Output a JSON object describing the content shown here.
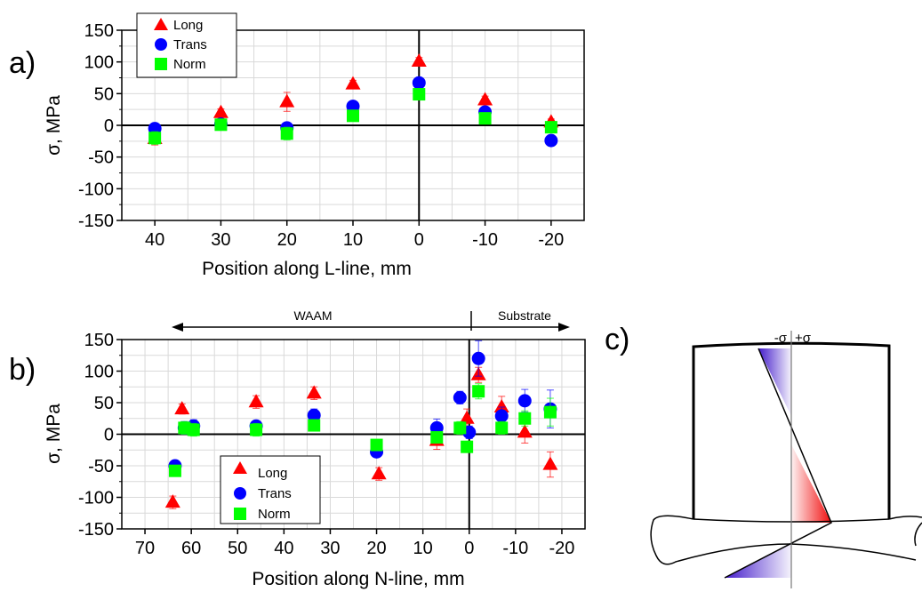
{
  "colors": {
    "long": "#ff0000",
    "trans": "#0000ff",
    "norm": "#00ff00"
  },
  "markers": {
    "long": "triangle",
    "trans": "circle",
    "norm": "square"
  },
  "panel_labels": {
    "a": "a)",
    "b": "b)",
    "c": "c)"
  },
  "panel_c": {
    "neg_label": "-σ",
    "pos_label": "+σ",
    "colors": {
      "negative": "#3a10c8",
      "positive": "#f00000"
    }
  },
  "chart_data": [
    {
      "type": "scatter",
      "panel": "a",
      "xlabel": "Position along L-line, mm",
      "ylabel": "σ, MPa",
      "xlim": [
        45,
        -25
      ],
      "ylim": [
        -150,
        150
      ],
      "x_reversed": true,
      "xticks": [
        40,
        30,
        20,
        10,
        0,
        -10,
        -20
      ],
      "yticks": [
        150,
        100,
        50,
        0,
        -50,
        -100,
        -150
      ],
      "grid": true,
      "zero_lines": true,
      "legend_position": "top-left",
      "series": [
        {
          "name": "Long",
          "key": "long",
          "x": [
            40,
            30,
            20,
            10,
            0,
            -10,
            -20
          ],
          "y": [
            -21,
            20,
            37,
            65,
            101,
            40,
            5
          ],
          "err": [
            10,
            6,
            15,
            6,
            6,
            6,
            5
          ]
        },
        {
          "name": "Trans",
          "key": "trans",
          "x": [
            40,
            30,
            20,
            10,
            0,
            -10,
            -20
          ],
          "y": [
            -5,
            2,
            -4,
            30,
            67,
            21,
            -24
          ],
          "err": [
            8,
            5,
            8,
            8,
            8,
            6,
            6
          ]
        },
        {
          "name": "Norm",
          "key": "norm",
          "x": [
            40,
            30,
            20,
            10,
            0,
            -10,
            -20
          ],
          "y": [
            -20,
            1,
            -13,
            15,
            49,
            11,
            -3
          ],
          "err": [
            10,
            5,
            10,
            6,
            6,
            5,
            5
          ]
        }
      ]
    },
    {
      "type": "scatter",
      "panel": "b",
      "xlabel": "Position along N-line, mm",
      "ylabel": "σ, MPa",
      "xlim": [
        75,
        -25
      ],
      "ylim": [
        -150,
        150
      ],
      "x_reversed": true,
      "xticks": [
        70,
        60,
        50,
        40,
        30,
        20,
        10,
        0,
        -10,
        -20
      ],
      "yticks": [
        150,
        100,
        50,
        0,
        -50,
        -100,
        -150
      ],
      "grid": true,
      "zero_lines": true,
      "legend_position": "bottom-left",
      "region_labels": {
        "left": "WAAM",
        "right": "Substrate"
      },
      "series": [
        {
          "name": "Long",
          "key": "long",
          "x": [
            64,
            62,
            46,
            33.5,
            19.5,
            7,
            0.5,
            -2,
            -7,
            -12,
            -17.5
          ],
          "y": [
            -108,
            40,
            51,
            65,
            -63,
            -10,
            25,
            94,
            43,
            3,
            -48
          ],
          "err": [
            10,
            8,
            10,
            10,
            10,
            14,
            15,
            12,
            17,
            17,
            20
          ]
        },
        {
          "name": "Trans",
          "key": "trans",
          "x": [
            63.5,
            61.5,
            59.5,
            46,
            33.5,
            20,
            7,
            2,
            0,
            -2,
            -7,
            -12,
            -17.5
          ],
          "y": [
            -50,
            10,
            13,
            13,
            30,
            -28,
            10,
            58,
            3,
            120,
            29,
            53,
            40
          ],
          "err": [
            6,
            10,
            10,
            8,
            10,
            6,
            14,
            10,
            10,
            28,
            14,
            18,
            30
          ]
        },
        {
          "name": "Norm",
          "key": "norm",
          "x": [
            63.5,
            61.5,
            59.5,
            46,
            33.5,
            20,
            7,
            2,
            0.5,
            -2,
            -7,
            -12,
            -17.5
          ],
          "y": [
            -58,
            10,
            7,
            7,
            14,
            -17,
            -5,
            10,
            -20,
            68,
            10,
            25,
            35
          ],
          "err": [
            6,
            10,
            10,
            10,
            6,
            8,
            8,
            10,
            8,
            12,
            10,
            12,
            22
          ]
        }
      ]
    }
  ]
}
